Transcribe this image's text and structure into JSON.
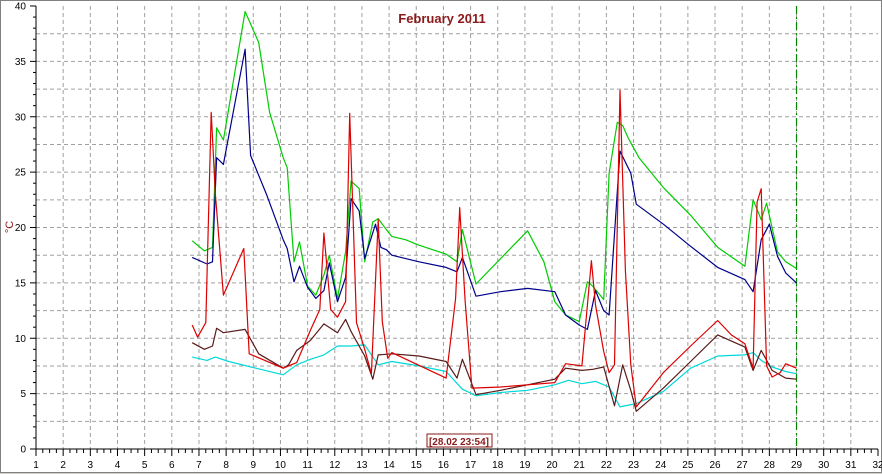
{
  "chart_data": {
    "type": "line",
    "title": "February 2011",
    "ylabel": "°C",
    "xlabel": "",
    "timestamp": "[28.02 23:54]",
    "xlim": [
      1,
      32
    ],
    "ylim": [
      0,
      40
    ],
    "x_ticks": [
      1,
      2,
      3,
      4,
      5,
      6,
      7,
      8,
      9,
      10,
      11,
      12,
      13,
      14,
      15,
      16,
      17,
      18,
      19,
      20,
      21,
      22,
      23,
      24,
      25,
      26,
      27,
      28,
      29,
      30,
      31,
      32
    ],
    "y_ticks": [
      0,
      5,
      10,
      15,
      20,
      25,
      30,
      35,
      40
    ],
    "grid": true,
    "current_day_marker": 29,
    "series": [
      {
        "color": "#00cc00",
        "x": [
          6.75,
          7.2,
          7.5,
          7.65,
          7.9,
          8.7,
          9.2,
          9.6,
          10.1,
          10.25,
          10.5,
          10.7,
          11.0,
          11.3,
          11.6,
          11.8,
          12.1,
          12.4,
          12.6,
          12.9,
          13.1,
          13.4,
          13.6,
          13.9,
          14.1,
          14.6,
          15.1,
          15.6,
          16.1,
          16.5,
          16.7,
          17.2,
          19.1,
          19.7,
          20.1,
          20.5,
          21.0,
          21.3,
          21.5,
          21.9,
          22.1,
          22.4,
          22.6,
          22.8,
          23.2,
          24.1,
          25.1,
          26.1,
          27.1,
          27.4,
          27.7,
          27.9,
          28.3,
          28.6,
          29.0
        ],
        "y": [
          18.8,
          17.9,
          18.2,
          29.0,
          27.9,
          39.5,
          36.7,
          30.4,
          26.3,
          25.4,
          16.9,
          18.7,
          14.7,
          13.9,
          15.7,
          17.5,
          13.6,
          17.8,
          24.2,
          23.5,
          16.9,
          20.5,
          20.8,
          19.8,
          19.2,
          18.9,
          18.4,
          18.0,
          17.6,
          16.9,
          19.8,
          14.9,
          19.7,
          16.9,
          13.3,
          12.1,
          11.5,
          15.1,
          14.7,
          13.5,
          24.9,
          29.5,
          29.2,
          28.1,
          26.3,
          23.6,
          21.1,
          18.2,
          16.5,
          22.5,
          20.7,
          22.2,
          17.8,
          16.9,
          16.3
        ]
      },
      {
        "color": "#00008b",
        "x": [
          6.75,
          7.3,
          7.5,
          7.65,
          7.9,
          8.7,
          8.9,
          9.5,
          10.1,
          10.25,
          10.5,
          10.7,
          11.0,
          11.3,
          11.6,
          11.8,
          12.1,
          12.4,
          12.6,
          12.9,
          13.1,
          13.5,
          13.7,
          13.9,
          14.1,
          15.1,
          16.1,
          16.5,
          16.7,
          17.2,
          18.1,
          19.1,
          20.1,
          20.5,
          21.0,
          21.3,
          21.6,
          21.9,
          22.1,
          22.5,
          22.9,
          23.1,
          24.1,
          25.1,
          26.1,
          27.1,
          27.4,
          27.7,
          28.0,
          28.3,
          28.6,
          29.0
        ],
        "y": [
          17.3,
          16.7,
          16.9,
          26.3,
          25.7,
          36.1,
          26.5,
          22.9,
          18.9,
          18.1,
          15.1,
          16.5,
          14.6,
          13.6,
          14.3,
          16.8,
          13.3,
          15.5,
          22.6,
          21.5,
          17.2,
          20.3,
          18.2,
          18.0,
          17.5,
          16.9,
          16.4,
          16.0,
          17.3,
          13.8,
          14.2,
          14.5,
          14.2,
          12.1,
          11.2,
          10.8,
          14.3,
          12.5,
          12.1,
          26.9,
          24.9,
          22.1,
          20.3,
          18.3,
          16.4,
          15.3,
          14.2,
          18.9,
          20.3,
          17.4,
          15.9,
          15.0
        ]
      },
      {
        "color": "#00d8d8",
        "x": [
          6.75,
          7.3,
          7.6,
          8.1,
          9.1,
          10.1,
          10.6,
          11.1,
          11.6,
          12.1,
          12.6,
          13.1,
          13.6,
          14.1,
          15.1,
          16.1,
          16.7,
          17.2,
          18.1,
          19.1,
          20.1,
          20.6,
          21.1,
          21.6,
          22.1,
          22.5,
          23.1,
          24.1,
          25.1,
          26.1,
          27.1,
          27.4,
          27.7,
          28.1,
          28.6,
          29.0
        ],
        "y": [
          8.3,
          8.0,
          8.3,
          7.9,
          7.3,
          6.7,
          7.6,
          8.1,
          8.5,
          9.3,
          9.3,
          9.4,
          7.6,
          7.9,
          7.5,
          7.0,
          5.4,
          4.8,
          5.1,
          5.3,
          5.8,
          6.2,
          5.9,
          6.1,
          5.6,
          3.8,
          4.1,
          5.2,
          7.3,
          8.4,
          8.5,
          8.7,
          8.0,
          7.4,
          7.0,
          6.8
        ]
      },
      {
        "color": "#5a1a1a",
        "x": [
          6.75,
          7.2,
          7.5,
          7.65,
          7.9,
          8.7,
          9.2,
          10.1,
          10.3,
          10.6,
          11.1,
          11.6,
          12.1,
          12.4,
          12.6,
          13.1,
          13.4,
          13.6,
          14.1,
          15.1,
          16.1,
          16.5,
          16.7,
          17.2,
          18.1,
          19.1,
          20.1,
          20.5,
          21.1,
          21.5,
          21.9,
          22.3,
          22.6,
          22.9,
          23.1,
          24.1,
          25.1,
          26.1,
          27.1,
          27.4,
          27.7,
          28.1,
          28.6,
          29.0
        ],
        "y": [
          9.6,
          9.0,
          9.3,
          10.9,
          10.5,
          10.8,
          8.6,
          7.3,
          7.6,
          8.9,
          9.8,
          11.3,
          10.5,
          11.7,
          10.6,
          8.4,
          6.3,
          8.5,
          8.6,
          8.4,
          7.9,
          6.4,
          8.1,
          4.9,
          5.3,
          5.8,
          6.3,
          7.3,
          7.1,
          7.2,
          7.4,
          3.9,
          7.6,
          5.3,
          3.4,
          5.5,
          7.9,
          10.3,
          9.2,
          7.1,
          8.9,
          7.1,
          6.4,
          6.3
        ]
      },
      {
        "color": "#dd0000",
        "x": [
          6.75,
          6.95,
          7.25,
          7.45,
          7.6,
          7.9,
          8.65,
          8.85,
          10.1,
          10.6,
          11.1,
          11.45,
          11.6,
          11.85,
          12.1,
          12.4,
          12.55,
          12.8,
          13.1,
          13.35,
          13.6,
          13.75,
          13.95,
          14.1,
          16.1,
          16.45,
          16.6,
          16.8,
          17.05,
          18.1,
          19.1,
          20.1,
          20.5,
          21.1,
          21.45,
          21.6,
          21.9,
          22.1,
          22.3,
          22.5,
          22.7,
          22.9,
          23.1,
          24.1,
          25.1,
          26.1,
          26.6,
          27.1,
          27.4,
          27.55,
          27.7,
          27.9,
          28.1,
          28.4,
          28.6,
          29.0
        ],
        "y": [
          11.2,
          10.1,
          11.4,
          30.4,
          23.1,
          13.9,
          18.1,
          8.6,
          7.3,
          7.8,
          10.7,
          12.6,
          19.5,
          12.6,
          11.9,
          13.3,
          30.3,
          11.4,
          9.0,
          6.8,
          20.7,
          11.5,
          8.2,
          8.7,
          6.4,
          13.6,
          21.8,
          13.4,
          5.5,
          5.6,
          5.8,
          6.0,
          7.7,
          7.5,
          17.0,
          13.0,
          8.8,
          6.9,
          7.6,
          32.4,
          16.1,
          7.6,
          3.8,
          6.9,
          9.3,
          11.6,
          10.3,
          9.5,
          7.3,
          22.3,
          23.5,
          7.5,
          6.5,
          6.9,
          7.7,
          7.3
        ]
      }
    ]
  }
}
